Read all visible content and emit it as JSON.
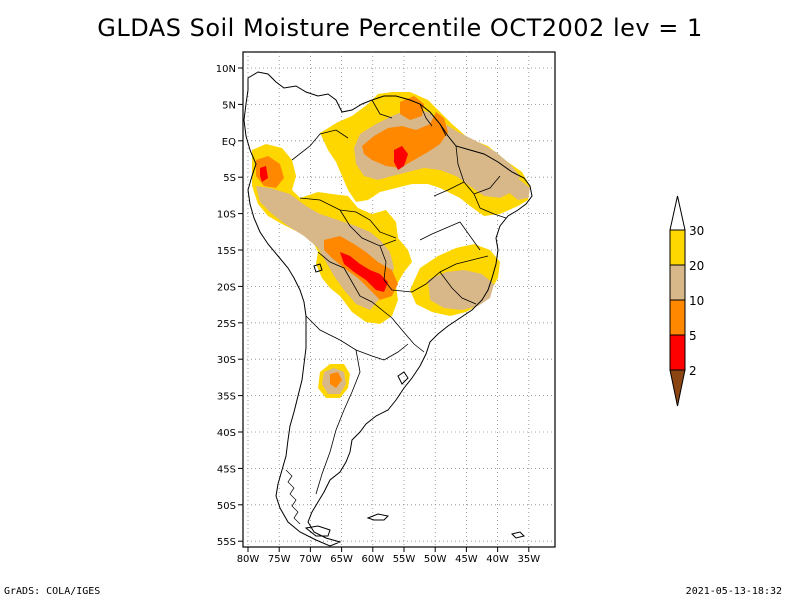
{
  "title": "GLDAS Soil Moisture Percentile OCT2002 lev = 1",
  "map": {
    "lat_labels": [
      "10N",
      "5N",
      "EQ",
      "5S",
      "10S",
      "15S",
      "20S",
      "25S",
      "30S",
      "35S",
      "40S",
      "45S",
      "50S",
      "55S"
    ],
    "lon_labels": [
      "80W",
      "75W",
      "70W",
      "65W",
      "60W",
      "55W",
      "50W",
      "45W",
      "40W",
      "35W"
    ]
  },
  "colorbar": {
    "labels": [
      "30",
      "20",
      "10",
      "5",
      "2"
    ],
    "colors": {
      "over30": "#ffffff",
      "c20_30": "#ffd700",
      "c10_20": "#d8b888",
      "c5_10": "#ff8800",
      "c2_5": "#ff0000",
      "under2": "#8b4513"
    }
  },
  "footer": {
    "left": "GrADS: COLA/IGES",
    "right": "2021-05-13-18:32"
  }
}
